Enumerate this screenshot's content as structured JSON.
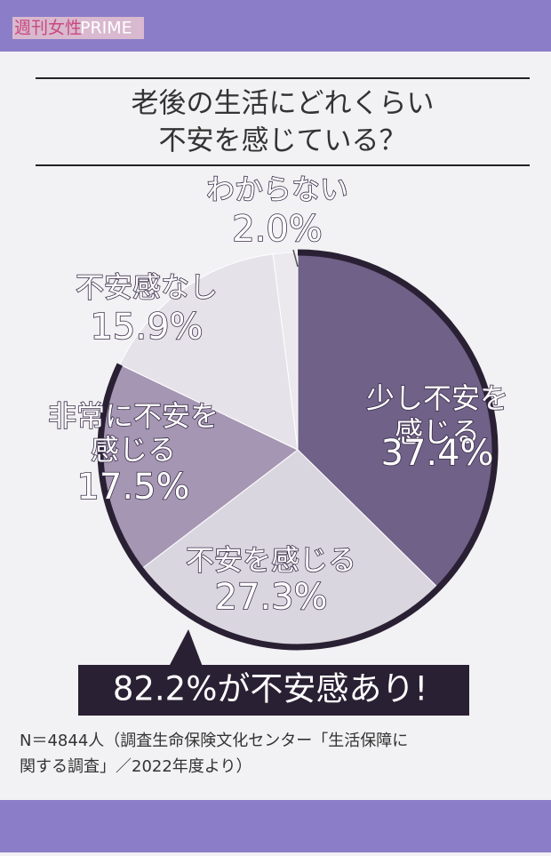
{
  "logo": {
    "kanji": "週刊女性",
    "latin": "PRIME"
  },
  "chart_data": {
    "type": "pie",
    "title": [
      "老後の生活にどれくらい",
      "不安を感じている？"
    ],
    "categories": [
      [
        "少し不安を",
        "感じる"
      ],
      [
        "不安を感じる"
      ],
      [
        "非常に不安を",
        "感じる"
      ],
      [
        "不安感なし"
      ],
      [
        "わからない"
      ]
    ],
    "values": [
      37.4,
      27.3,
      17.5,
      15.9,
      2.0
    ],
    "value_labels": [
      "37.4%",
      "27.3%",
      "17.5%",
      "15.9%",
      "2.0%"
    ],
    "colors": [
      "#6f6187",
      "#dad6df",
      "#a596b3",
      "#e6e2e9",
      "#ebe8ee"
    ],
    "annotation": "82.2%が不安感あり!",
    "note": [
      "N＝4844人（調査生命保険文化センター「生活保障に",
      "関する調査」／2022年度より）"
    ]
  }
}
